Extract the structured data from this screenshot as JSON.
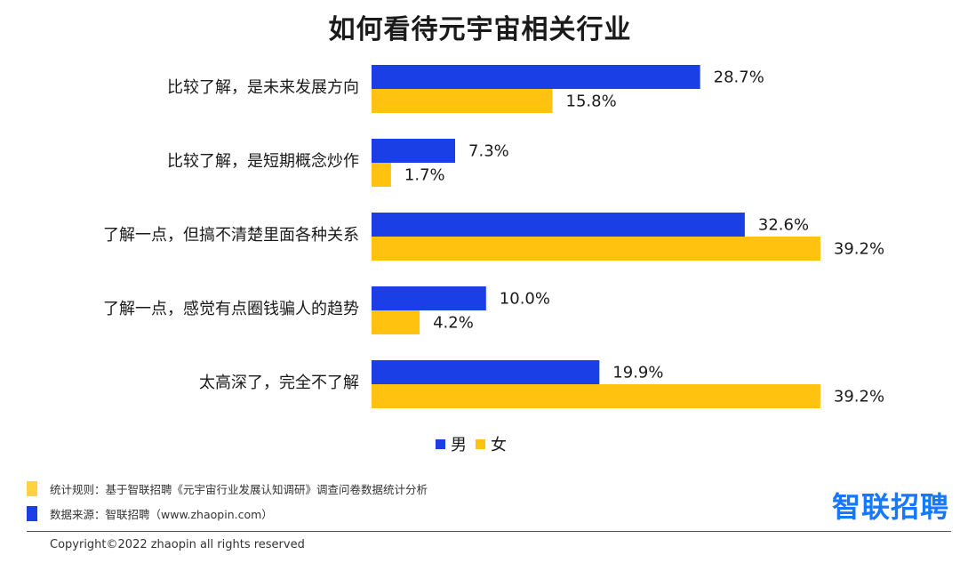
{
  "title": "如何看待元宇宙相关行业",
  "colors": {
    "male": "#1a3fe6",
    "female": "#ffc20e"
  },
  "legend": {
    "male_label": "男",
    "female_label": "女"
  },
  "chart_data": {
    "type": "bar",
    "orientation": "horizontal",
    "title": "如何看待元宇宙相关行业",
    "categories": [
      "比较了解，是未来发展方向",
      "比较了解，是短期概念炒作",
      "了解一点，但搞不清楚里面各种关系",
      "了解一点，感觉有点圈钱骗人的趋势",
      "太高深了，完全不了解"
    ],
    "series": [
      {
        "name": "男",
        "color": "#1a3fe6",
        "values": [
          28.7,
          7.3,
          32.6,
          10.0,
          19.9
        ]
      },
      {
        "name": "女",
        "color": "#ffc20e",
        "values": [
          15.8,
          1.7,
          39.2,
          4.2,
          39.2
        ]
      }
    ],
    "unit": "%",
    "xlim": [
      0,
      40
    ],
    "grid": false,
    "legend_position": "bottom-center"
  },
  "notes": [
    {
      "color": "#ffd23f",
      "text": "统计规则：基于智联招聘《元宇宙行业发展认知调研》调查问卷数据统计分析"
    },
    {
      "color": "#1a3fe6",
      "text": "数据来源：智联招聘（www.zhaopin.com）"
    }
  ],
  "brand": "智联招聘",
  "copyright": "Copyright©2022 zhaopin all rights reserved"
}
